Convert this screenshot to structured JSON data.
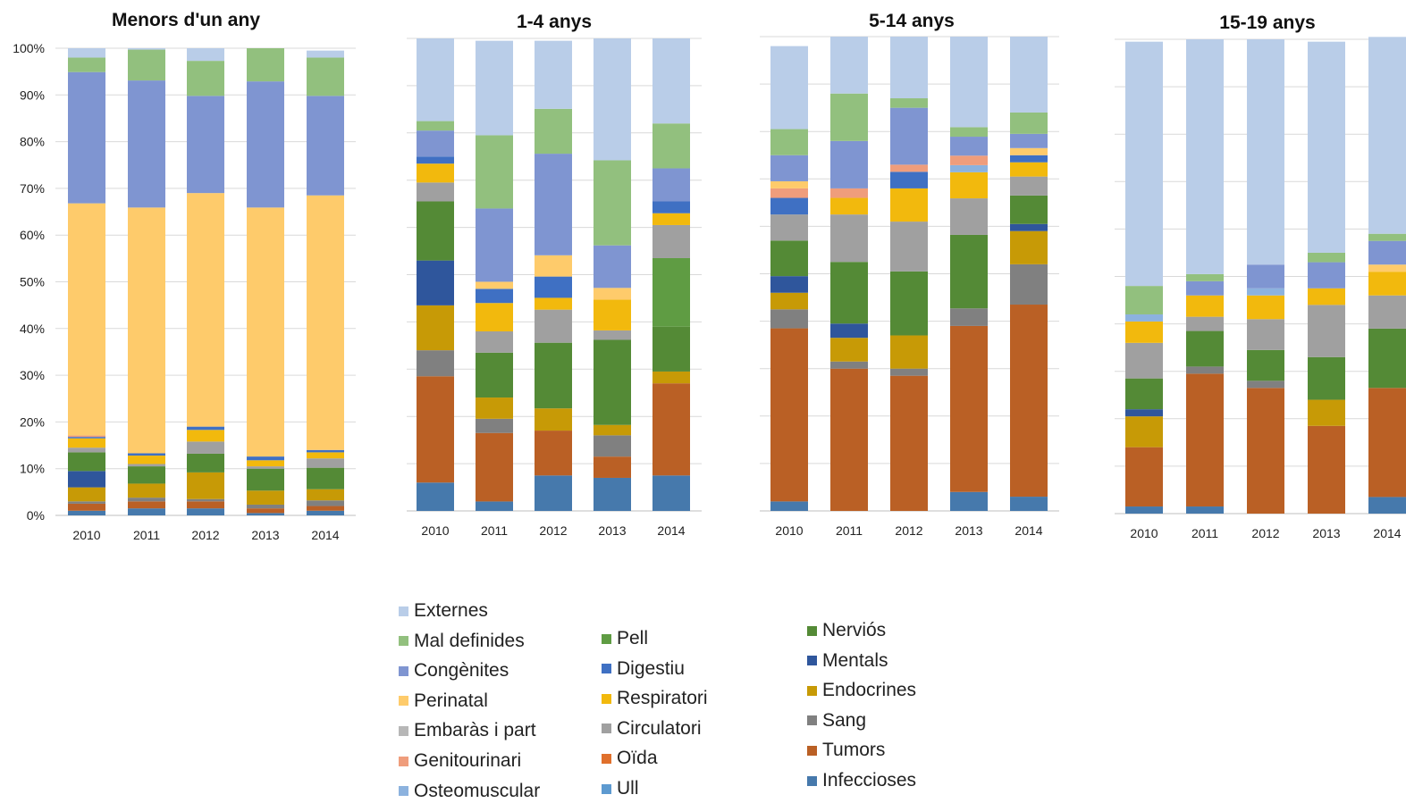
{
  "colors": {
    "Externes": "#b9cde8",
    "Mal definides": "#92c07e",
    "Congènites": "#7f95d1",
    "Perinatal": "#fecb6b",
    "Embaràs i part": "#b7b7b7",
    "Genitourinari": "#ef9d7c",
    "Osteomuscular": "#8cb2de",
    "Pell": "#5f9c43",
    "Digestiu": "#3f70c3",
    "Respiratori": "#f2b90d",
    "Circulatori": "#a0a0a0",
    "Oïda": "#e0702c",
    "Ull": "#5d9ad0",
    "Nerviós": "#548a36",
    "Mentals": "#2f569c",
    "Endocrines": "#c79a06",
    "Sang": "#808080",
    "Tumors": "#ba6025",
    "Infeccioses": "#4679ac"
  },
  "legend": {
    "col1": [
      "Externes",
      "Mal definides",
      "Congènites",
      "Perinatal",
      "Embaràs i part",
      "Genitourinari",
      "Osteomuscular"
    ],
    "col2": [
      "Pell",
      "Digestiu",
      "Respiratori",
      "Circulatori",
      "Oïda",
      "Ull"
    ],
    "col3": [
      "Nerviós",
      "Mentals",
      "Endocrines",
      "Sang",
      "Tumors",
      "Infeccioses"
    ]
  },
  "chart_data": [
    {
      "type": "bar",
      "stacked": true,
      "title": "Menors d'un any",
      "categories": [
        "2010",
        "2011",
        "2012",
        "2013",
        "2014"
      ],
      "y_ticks": [
        "0%",
        "10%",
        "20%",
        "30%",
        "40%",
        "50%",
        "60%",
        "70%",
        "80%",
        "90%",
        "100%"
      ],
      "ylim": [
        0,
        100
      ],
      "show_y_axis": true,
      "series": [
        {
          "name": "Infeccioses",
          "values": [
            1.0,
            1.5,
            1.5,
            0.5,
            1.0
          ]
        },
        {
          "name": "Tumors",
          "values": [
            1.5,
            1.5,
            1.5,
            1.0,
            1.0
          ]
        },
        {
          "name": "Sang",
          "values": [
            0.5,
            0.8,
            0.5,
            0.8,
            1.2
          ]
        },
        {
          "name": "Endocrines",
          "values": [
            3.0,
            3.0,
            5.7,
            3.0,
            2.4
          ]
        },
        {
          "name": "Mentals",
          "values": [
            3.5,
            0,
            0,
            0,
            0
          ]
        },
        {
          "name": "Nerviós",
          "values": [
            4.0,
            3.7,
            4.0,
            4.7,
            4.6
          ]
        },
        {
          "name": "Ull",
          "values": [
            0,
            0,
            0,
            0,
            0
          ]
        },
        {
          "name": "Oïda",
          "values": [
            0,
            0,
            0,
            0,
            0
          ]
        },
        {
          "name": "Circulatori",
          "values": [
            1.0,
            0.5,
            2.6,
            0.5,
            2.0
          ]
        },
        {
          "name": "Respiratori",
          "values": [
            2.0,
            1.8,
            2.5,
            1.3,
            1.3
          ]
        },
        {
          "name": "Digestiu",
          "values": [
            0.3,
            0.5,
            0.7,
            0.8,
            0.5
          ]
        },
        {
          "name": "Pell",
          "values": [
            0,
            0,
            0,
            0,
            0
          ]
        },
        {
          "name": "Osteomuscular",
          "values": [
            0,
            0,
            0,
            0,
            0
          ]
        },
        {
          "name": "Genitourinari",
          "values": [
            0.3,
            0,
            0,
            0,
            0
          ]
        },
        {
          "name": "Embaràs i part",
          "values": [
            0,
            0,
            0,
            0,
            0
          ]
        },
        {
          "name": "Perinatal",
          "values": [
            49.7,
            52.6,
            50.0,
            53.3,
            54.5
          ]
        },
        {
          "name": "Congènites",
          "values": [
            28.1,
            27.2,
            20.8,
            27.0,
            21.3
          ]
        },
        {
          "name": "Mal definides",
          "values": [
            3.1,
            6.6,
            7.5,
            7.1,
            8.2
          ]
        },
        {
          "name": "Externes",
          "values": [
            2.0,
            0.3,
            2.7,
            0,
            1.5
          ]
        }
      ]
    },
    {
      "type": "bar",
      "stacked": true,
      "title": "1-4 anys",
      "categories": [
        "2010",
        "2011",
        "2012",
        "2013",
        "2014"
      ],
      "ylim": [
        0,
        100
      ],
      "show_y_axis": false,
      "series": [
        {
          "name": "Infeccioses",
          "values": [
            6.0,
            2.0,
            7.5,
            7.0,
            7.5
          ]
        },
        {
          "name": "Tumors",
          "values": [
            22.5,
            14.5,
            9.5,
            4.5,
            19.5
          ]
        },
        {
          "name": "Sang",
          "values": [
            5.5,
            3.0,
            0,
            4.5,
            0
          ]
        },
        {
          "name": "Endocrines",
          "values": [
            9.5,
            4.5,
            4.7,
            2.2,
            2.5
          ]
        },
        {
          "name": "Mentals",
          "values": [
            9.5,
            0,
            0,
            0,
            0
          ]
        },
        {
          "name": "Nerviós",
          "values": [
            12.5,
            9.5,
            13.9,
            18.0,
            9.5
          ]
        },
        {
          "name": "Ull",
          "values": [
            0,
            0,
            0,
            0,
            0
          ]
        },
        {
          "name": "Oïda",
          "values": [
            0,
            0,
            0,
            0,
            0
          ]
        },
        {
          "name": "Pell",
          "values": [
            0,
            0,
            0,
            0,
            14.5
          ]
        },
        {
          "name": "Circulatori",
          "values": [
            4.0,
            4.5,
            7.0,
            2.0,
            7.0
          ]
        },
        {
          "name": "Respiratori",
          "values": [
            4.0,
            6.0,
            2.5,
            6.5,
            2.5
          ]
        },
        {
          "name": "Digestiu",
          "values": [
            1.5,
            3.0,
            4.5,
            0,
            2.5
          ]
        },
        {
          "name": "Osteomuscular",
          "values": [
            0,
            0,
            0,
            0,
            0
          ]
        },
        {
          "name": "Genitourinari",
          "values": [
            0,
            0,
            0,
            0,
            0
          ]
        },
        {
          "name": "Embaràs i part",
          "values": [
            0,
            0,
            0,
            0,
            0
          ]
        },
        {
          "name": "Perinatal",
          "values": [
            0,
            1.5,
            4.5,
            2.5,
            0
          ]
        },
        {
          "name": "Congènites",
          "values": [
            5.5,
            15.5,
            21.5,
            9.0,
            7.0
          ]
        },
        {
          "name": "Mal definides",
          "values": [
            2.0,
            15.5,
            9.5,
            18.0,
            9.5
          ]
        },
        {
          "name": "Externes",
          "values": [
            17.5,
            20.0,
            14.4,
            25.8,
            18.0
          ]
        }
      ]
    },
    {
      "type": "bar",
      "stacked": true,
      "title": "5-14 anys",
      "categories": [
        "2010",
        "2011",
        "2012",
        "2013",
        "2014"
      ],
      "ylim": [
        0,
        100
      ],
      "show_y_axis": false,
      "series": [
        {
          "name": "Infeccioses",
          "values": [
            2.0,
            0,
            0,
            4.0,
            3.0
          ]
        },
        {
          "name": "Tumors",
          "values": [
            36.5,
            30.0,
            28.5,
            35.0,
            40.5
          ]
        },
        {
          "name": "Sang",
          "values": [
            4.0,
            1.5,
            1.5,
            3.7,
            8.5
          ]
        },
        {
          "name": "Endocrines",
          "values": [
            3.5,
            5.0,
            7.0,
            0,
            7.0
          ]
        },
        {
          "name": "Mentals",
          "values": [
            3.5,
            3.0,
            0,
            0,
            1.5
          ]
        },
        {
          "name": "Nerviós",
          "values": [
            7.5,
            13.0,
            13.5,
            15.5,
            6.0
          ]
        },
        {
          "name": "Ull",
          "values": [
            0,
            0,
            0,
            0,
            0
          ]
        },
        {
          "name": "Oïda",
          "values": [
            0,
            0,
            0,
            0,
            0
          ]
        },
        {
          "name": "Pell",
          "values": [
            0,
            0,
            0,
            0,
            0
          ]
        },
        {
          "name": "Circulatori",
          "values": [
            5.5,
            10.0,
            10.5,
            7.7,
            4.0
          ]
        },
        {
          "name": "Respiratori",
          "values": [
            0,
            3.5,
            7.0,
            5.5,
            3.0
          ]
        },
        {
          "name": "Digestiu",
          "values": [
            3.5,
            0,
            3.5,
            0,
            1.5
          ]
        },
        {
          "name": "Osteomuscular",
          "values": [
            0,
            0,
            0,
            1.5,
            0
          ]
        },
        {
          "name": "Genitourinari",
          "values": [
            2.0,
            2.0,
            1.5,
            2.0,
            0
          ]
        },
        {
          "name": "Embaràs i part",
          "values": [
            0,
            0,
            0,
            0,
            0
          ]
        },
        {
          "name": "Perinatal",
          "values": [
            1.5,
            0,
            0,
            0,
            1.5
          ]
        },
        {
          "name": "Congènites",
          "values": [
            5.5,
            10.0,
            12.0,
            4.0,
            3.0
          ]
        },
        {
          "name": "Mal definides",
          "values": [
            5.5,
            10.0,
            2.0,
            2.0,
            4.5
          ]
        },
        {
          "name": "Externes",
          "values": [
            17.5,
            12.0,
            13.0,
            19.1,
            16.0
          ]
        }
      ]
    },
    {
      "type": "bar",
      "stacked": true,
      "title": "15-19 anys",
      "categories": [
        "2010",
        "2011",
        "2012",
        "2013",
        "2014"
      ],
      "ylim": [
        0,
        100
      ],
      "show_y_axis": false,
      "series": [
        {
          "name": "Infeccioses",
          "values": [
            1.5,
            1.5,
            0,
            0,
            3.5
          ]
        },
        {
          "name": "Tumors",
          "values": [
            12.5,
            28.0,
            26.5,
            18.5,
            23.0
          ]
        },
        {
          "name": "Sang",
          "values": [
            0,
            1.5,
            1.5,
            0,
            0
          ]
        },
        {
          "name": "Endocrines",
          "values": [
            6.5,
            0,
            0,
            5.5,
            0
          ]
        },
        {
          "name": "Mentals",
          "values": [
            1.5,
            0,
            0,
            0,
            0
          ]
        },
        {
          "name": "Nerviós",
          "values": [
            6.5,
            7.5,
            6.5,
            9.0,
            12.5
          ]
        },
        {
          "name": "Ull",
          "values": [
            0,
            0,
            0,
            0,
            0
          ]
        },
        {
          "name": "Oïda",
          "values": [
            0,
            0,
            0,
            0,
            0
          ]
        },
        {
          "name": "Pell",
          "values": [
            0,
            0,
            0,
            0,
            0
          ]
        },
        {
          "name": "Circulatori",
          "values": [
            7.5,
            3.0,
            6.5,
            11.0,
            7.0
          ]
        },
        {
          "name": "Respiratori",
          "values": [
            4.5,
            4.5,
            5.0,
            3.5,
            5.0
          ]
        },
        {
          "name": "Digestiu",
          "values": [
            0,
            0,
            0,
            0,
            0
          ]
        },
        {
          "name": "Osteomuscular",
          "values": [
            1.5,
            0,
            1.5,
            0,
            0
          ]
        },
        {
          "name": "Genitourinari",
          "values": [
            0,
            0,
            0,
            0,
            0
          ]
        },
        {
          "name": "Embaràs i part",
          "values": [
            0,
            0,
            0,
            0,
            0
          ]
        },
        {
          "name": "Perinatal",
          "values": [
            0,
            0,
            0,
            0,
            1.5
          ]
        },
        {
          "name": "Congènites",
          "values": [
            0,
            3.0,
            5.0,
            5.5,
            5.0
          ]
        },
        {
          "name": "Mal definides",
          "values": [
            6.0,
            1.5,
            0,
            2.0,
            1.5
          ]
        },
        {
          "name": "Externes",
          "values": [
            51.5,
            49.5,
            47.5,
            44.5,
            41.5
          ]
        }
      ]
    }
  ]
}
